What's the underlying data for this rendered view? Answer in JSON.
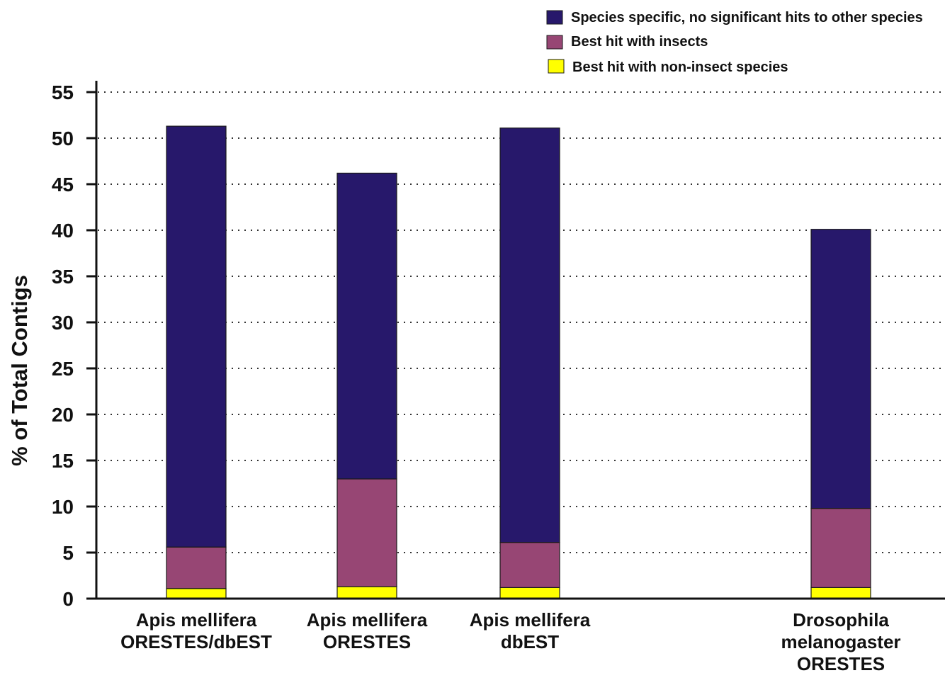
{
  "chart_data": {
    "type": "bar",
    "stacked": true,
    "categories": [
      [
        "Apis mellifera",
        "ORESTES/dbEST"
      ],
      [
        "Apis mellifera",
        "ORESTES"
      ],
      [
        "Apis mellifera",
        "dbEST"
      ],
      [
        "Drosophila",
        "melanogaster",
        "ORESTES"
      ]
    ],
    "series": [
      {
        "name": "Best hit with non-insect species",
        "color": "#ffff00",
        "values": [
          1.1,
          1.3,
          1.2,
          1.2
        ]
      },
      {
        "name": "Best hit with insects",
        "color": "#974674",
        "values": [
          4.5,
          11.7,
          4.9,
          8.6
        ]
      },
      {
        "name": "Species specific, no significant hits to other species",
        "color": "#27186b",
        "values": [
          45.7,
          33.2,
          45.0,
          30.3
        ]
      }
    ],
    "legend_order": [
      2,
      1,
      0
    ],
    "legend_position": "top-right",
    "ylabel": "% of Total Contigs",
    "xlabel": "",
    "title": "",
    "ylim": [
      0,
      55
    ],
    "yticks": [
      0,
      5,
      10,
      15,
      20,
      25,
      30,
      35,
      40,
      45,
      50,
      55
    ],
    "grid": "horizontal-dotted"
  }
}
